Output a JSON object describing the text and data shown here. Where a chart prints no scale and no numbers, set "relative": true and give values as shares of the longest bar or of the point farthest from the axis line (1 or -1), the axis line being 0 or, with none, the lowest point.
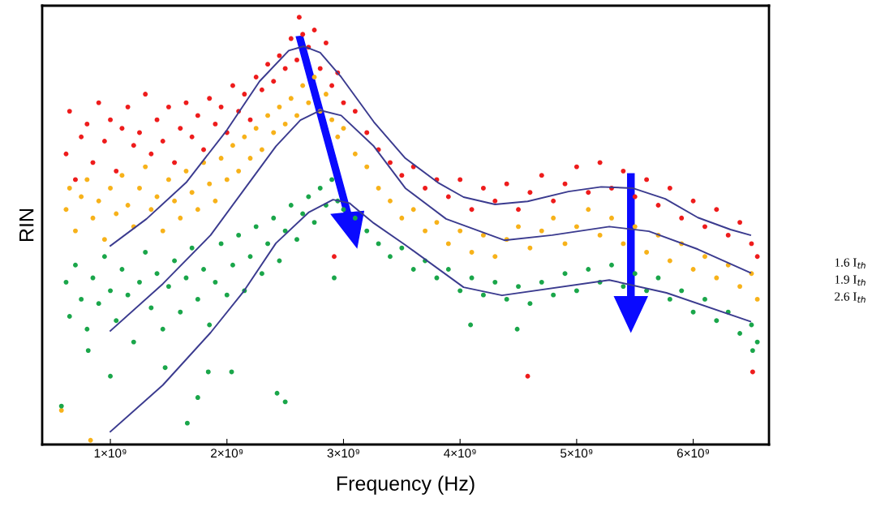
{
  "chart_data": {
    "type": "scatter",
    "relative": true,
    "xlabel": "Frequency (Hz)",
    "ylabel": "RIN",
    "xlim": [
      415000000.0,
      6650000000.0
    ],
    "xticks": [
      {
        "value": 1000000000.0,
        "label": "1×10⁹"
      },
      {
        "value": 2000000000.0,
        "label": "2×10⁹"
      },
      {
        "value": 3000000000.0,
        "label": "3×10⁹"
      },
      {
        "value": 4000000000.0,
        "label": "4×10⁹"
      },
      {
        "value": 5000000000.0,
        "label": "5×10⁹"
      },
      {
        "value": 6000000000.0,
        "label": "6×10⁹"
      }
    ],
    "annotations": [
      "1.6 I$_{th}$",
      "1.9 I$_{th}$",
      "2.6 I$_{th}$"
    ],
    "series": [
      {
        "marker": "circle",
        "color": "#ee1c1c",
        "x": [
          620000000.0,
          650000000.0,
          700000000.0,
          750000000.0,
          800000000.0,
          850000000.0,
          900000000.0,
          950000000.0,
          1000000000.0,
          1050000000.0,
          1100000000.0,
          1150000000.0,
          1200000000.0,
          1250000000.0,
          1300000000.0,
          1350000000.0,
          1400000000.0,
          1450000000.0,
          1500000000.0,
          1550000000.0,
          1600000000.0,
          1650000000.0,
          1700000000.0,
          1750000000.0,
          1800000000.0,
          1850000000.0,
          1900000000.0,
          1950000000.0,
          2000000000.0,
          2050000000.0,
          2100000000.0,
          2150000000.0,
          2200000000.0,
          2250000000.0,
          2300000000.0,
          2350000000.0,
          2400000000.0,
          2450000000.0,
          2500000000.0,
          2550000000.0,
          2600000000.0,
          2620000000.0,
          2650000000.0,
          2700000000.0,
          2750000000.0,
          2800000000.0,
          2850000000.0,
          2900000000.0,
          2920000000.0,
          2950000000.0,
          3000000000.0,
          3100000000.0,
          3200000000.0,
          3300000000.0,
          3400000000.0,
          3500000000.0,
          3600000000.0,
          3700000000.0,
          3800000000.0,
          3900000000.0,
          4000000000.0,
          4100000000.0,
          4200000000.0,
          4300000000.0,
          4400000000.0,
          4500000000.0,
          4580000000.0,
          4600000000.0,
          4700000000.0,
          4800000000.0,
          4900000000.0,
          5000000000.0,
          5100000000.0,
          5200000000.0,
          5300000000.0,
          5400000000.0,
          5500000000.0,
          5600000000.0,
          5700000000.0,
          5800000000.0,
          5900000000.0,
          6000000000.0,
          6100000000.0,
          6200000000.0,
          6300000000.0,
          6400000000.0,
          6500000000.0,
          6510000000.0,
          6550000000.0
        ],
        "values": [
          0.68,
          0.78,
          0.62,
          0.72,
          0.75,
          0.66,
          0.8,
          0.71,
          0.76,
          0.64,
          0.74,
          0.79,
          0.7,
          0.73,
          0.82,
          0.68,
          0.76,
          0.71,
          0.79,
          0.66,
          0.74,
          0.8,
          0.72,
          0.77,
          0.69,
          0.81,
          0.75,
          0.79,
          0.73,
          0.84,
          0.78,
          0.82,
          0.76,
          0.86,
          0.83,
          0.89,
          0.85,
          0.91,
          0.88,
          0.95,
          0.9,
          1.0,
          0.96,
          0.93,
          0.97,
          0.88,
          0.94,
          0.84,
          0.44,
          0.87,
          0.8,
          0.78,
          0.73,
          0.69,
          0.66,
          0.63,
          0.65,
          0.6,
          0.62,
          0.58,
          0.62,
          0.55,
          0.6,
          0.57,
          0.61,
          0.55,
          0.16,
          0.59,
          0.63,
          0.57,
          0.61,
          0.65,
          0.59,
          0.66,
          0.6,
          0.64,
          0.58,
          0.62,
          0.56,
          0.6,
          0.53,
          0.57,
          0.51,
          0.55,
          0.49,
          0.52,
          0.47,
          0.17,
          0.44
        ]
      },
      {
        "marker": "circle",
        "color": "#f7b21a",
        "x": [
          580000000.0,
          620000000.0,
          650000000.0,
          700000000.0,
          750000000.0,
          800000000.0,
          830000000.0,
          850000000.0,
          900000000.0,
          950000000.0,
          1000000000.0,
          1050000000.0,
          1100000000.0,
          1150000000.0,
          1200000000.0,
          1250000000.0,
          1300000000.0,
          1350000000.0,
          1400000000.0,
          1450000000.0,
          1500000000.0,
          1550000000.0,
          1600000000.0,
          1650000000.0,
          1700000000.0,
          1750000000.0,
          1800000000.0,
          1850000000.0,
          1900000000.0,
          1950000000.0,
          2000000000.0,
          2050000000.0,
          2100000000.0,
          2150000000.0,
          2200000000.0,
          2250000000.0,
          2300000000.0,
          2350000000.0,
          2400000000.0,
          2450000000.0,
          2500000000.0,
          2550000000.0,
          2600000000.0,
          2650000000.0,
          2700000000.0,
          2750000000.0,
          2800000000.0,
          2850000000.0,
          2900000000.0,
          2950000000.0,
          3000000000.0,
          3100000000.0,
          3200000000.0,
          3300000000.0,
          3400000000.0,
          3500000000.0,
          3600000000.0,
          3700000000.0,
          3800000000.0,
          3900000000.0,
          4000000000.0,
          4100000000.0,
          4200000000.0,
          4300000000.0,
          4400000000.0,
          4500000000.0,
          4600000000.0,
          4700000000.0,
          4800000000.0,
          4900000000.0,
          5000000000.0,
          5100000000.0,
          5200000000.0,
          5300000000.0,
          5400000000.0,
          5500000000.0,
          5600000000.0,
          5700000000.0,
          5800000000.0,
          5900000000.0,
          6000000000.0,
          6100000000.0,
          6200000000.0,
          6300000000.0,
          6400000000.0,
          6500000000.0,
          6550000000.0
        ],
        "values": [
          0.08,
          0.55,
          0.6,
          0.5,
          0.58,
          0.62,
          0.01,
          0.53,
          0.57,
          0.48,
          0.6,
          0.54,
          0.63,
          0.56,
          0.51,
          0.6,
          0.65,
          0.55,
          0.58,
          0.5,
          0.62,
          0.57,
          0.53,
          0.64,
          0.59,
          0.55,
          0.66,
          0.61,
          0.57,
          0.67,
          0.62,
          0.7,
          0.64,
          0.72,
          0.67,
          0.74,
          0.69,
          0.77,
          0.73,
          0.79,
          0.75,
          0.81,
          0.77,
          0.84,
          0.8,
          0.86,
          0.78,
          0.82,
          0.76,
          0.72,
          0.74,
          0.68,
          0.65,
          0.6,
          0.57,
          0.53,
          0.55,
          0.5,
          0.52,
          0.47,
          0.5,
          0.45,
          0.49,
          0.44,
          0.48,
          0.51,
          0.46,
          0.5,
          0.53,
          0.47,
          0.51,
          0.55,
          0.49,
          0.53,
          0.47,
          0.51,
          0.45,
          0.49,
          0.43,
          0.47,
          0.41,
          0.44,
          0.39,
          0.42,
          0.37,
          0.4,
          0.34
        ]
      },
      {
        "marker": "circle",
        "color": "#1aa64a",
        "x": [
          580000000.0,
          620000000.0,
          650000000.0,
          700000000.0,
          750000000.0,
          800000000.0,
          810000000.0,
          850000000.0,
          900000000.0,
          950000000.0,
          1000000000.0,
          1000000000.0,
          1050000000.0,
          1100000000.0,
          1150000000.0,
          1200000000.0,
          1250000000.0,
          1300000000.0,
          1350000000.0,
          1400000000.0,
          1450000000.0,
          1470000000.0,
          1500000000.0,
          1550000000.0,
          1600000000.0,
          1650000000.0,
          1660000000.0,
          1700000000.0,
          1750000000.0,
          1750000000.0,
          1800000000.0,
          1840000000.0,
          1850000000.0,
          1900000000.0,
          1950000000.0,
          2000000000.0,
          2040000000.0,
          2050000000.0,
          2100000000.0,
          2150000000.0,
          2200000000.0,
          2250000000.0,
          2300000000.0,
          2350000000.0,
          2400000000.0,
          2430000000.0,
          2450000000.0,
          2500000000.0,
          2500000000.0,
          2550000000.0,
          2600000000.0,
          2650000000.0,
          2700000000.0,
          2750000000.0,
          2800000000.0,
          2850000000.0,
          2900000000.0,
          2920000000.0,
          2950000000.0,
          3000000000.0,
          3100000000.0,
          3200000000.0,
          3300000000.0,
          3400000000.0,
          3500000000.0,
          3600000000.0,
          3700000000.0,
          3800000000.0,
          3900000000.0,
          4000000000.0,
          4090000000.0,
          4100000000.0,
          4200000000.0,
          4300000000.0,
          4400000000.0,
          4490000000.0,
          4500000000.0,
          4600000000.0,
          4700000000.0,
          4800000000.0,
          4900000000.0,
          5000000000.0,
          5100000000.0,
          5200000000.0,
          5300000000.0,
          5400000000.0,
          5500000000.0,
          5600000000.0,
          5700000000.0,
          5800000000.0,
          5900000000.0,
          6000000000.0,
          6100000000.0,
          6200000000.0,
          6300000000.0,
          6400000000.0,
          6500000000.0,
          6510000000.0,
          6550000000.0
        ],
        "values": [
          0.09,
          0.38,
          0.3,
          0.42,
          0.34,
          0.27,
          0.22,
          0.39,
          0.33,
          0.44,
          0.36,
          0.16,
          0.29,
          0.41,
          0.35,
          0.24,
          0.38,
          0.45,
          0.32,
          0.4,
          0.27,
          0.18,
          0.37,
          0.43,
          0.31,
          0.39,
          0.05,
          0.46,
          0.34,
          0.11,
          0.41,
          0.17,
          0.28,
          0.38,
          0.47,
          0.35,
          0.17,
          0.42,
          0.49,
          0.36,
          0.44,
          0.51,
          0.4,
          0.47,
          0.53,
          0.12,
          0.43,
          0.5,
          0.1,
          0.56,
          0.48,
          0.54,
          0.58,
          0.52,
          0.6,
          0.56,
          0.62,
          0.39,
          0.57,
          0.55,
          0.53,
          0.5,
          0.47,
          0.44,
          0.46,
          0.41,
          0.43,
          0.39,
          0.41,
          0.36,
          0.28,
          0.39,
          0.35,
          0.38,
          0.34,
          0.27,
          0.37,
          0.33,
          0.38,
          0.35,
          0.4,
          0.36,
          0.41,
          0.38,
          0.42,
          0.37,
          0.4,
          0.36,
          0.39,
          0.34,
          0.36,
          0.31,
          0.34,
          0.29,
          0.31,
          0.26,
          0.28,
          0.22,
          0.24
        ]
      },
      {
        "type": "line",
        "color": "#3b3b8f",
        "line_style": "solid",
        "x": [
          1000000000.0,
          1310000000.0,
          1650000000.0,
          2000000000.0,
          2280000000.0,
          2530000000.0,
          2660000000.0,
          2800000000.0,
          2980000000.0,
          3260000000.0,
          3530000000.0,
          3810000000.0,
          4030000000.0,
          4300000000.0,
          4580000000.0,
          4930000000.0,
          5210000000.0,
          5480000000.0,
          5760000000.0,
          6040000000.0,
          6320000000.0,
          6490000000.0
        ],
        "values": [
          0.465,
          0.528,
          0.613,
          0.736,
          0.85,
          0.922,
          0.932,
          0.917,
          0.86,
          0.755,
          0.67,
          0.613,
          0.579,
          0.562,
          0.569,
          0.592,
          0.603,
          0.6,
          0.575,
          0.531,
          0.503,
          0.49
        ]
      },
      {
        "type": "line",
        "color": "#3b3b8f",
        "line_style": "solid",
        "x": [
          1000000000.0,
          1450000000.0,
          1860000000.0,
          2140000000.0,
          2420000000.0,
          2630000000.0,
          2800000000.0,
          2980000000.0,
          3260000000.0,
          3530000000.0,
          3880000000.0,
          4380000000.0,
          4790000000.0,
          5280000000.0,
          5620000000.0,
          6040000000.0,
          6490000000.0
        ],
        "values": [
          0.266,
          0.376,
          0.49,
          0.594,
          0.698,
          0.759,
          0.782,
          0.77,
          0.698,
          0.6,
          0.528,
          0.478,
          0.49,
          0.51,
          0.499,
          0.457,
          0.402
        ]
      },
      {
        "type": "line",
        "color": "#3b3b8f",
        "line_style": "solid",
        "x": [
          1000000000.0,
          1450000000.0,
          1860000000.0,
          2140000000.0,
          2420000000.0,
          2700000000.0,
          2910000000.0,
          3050000000.0,
          3260000000.0,
          3530000000.0,
          4030000000.0,
          4360000000.0,
          5280000000.0,
          5770000000.0,
          6490000000.0
        ],
        "values": [
          0.03,
          0.139,
          0.262,
          0.357,
          0.471,
          0.543,
          0.573,
          0.565,
          0.518,
          0.467,
          0.368,
          0.349,
          0.385,
          0.355,
          0.288
        ]
      }
    ]
  }
}
